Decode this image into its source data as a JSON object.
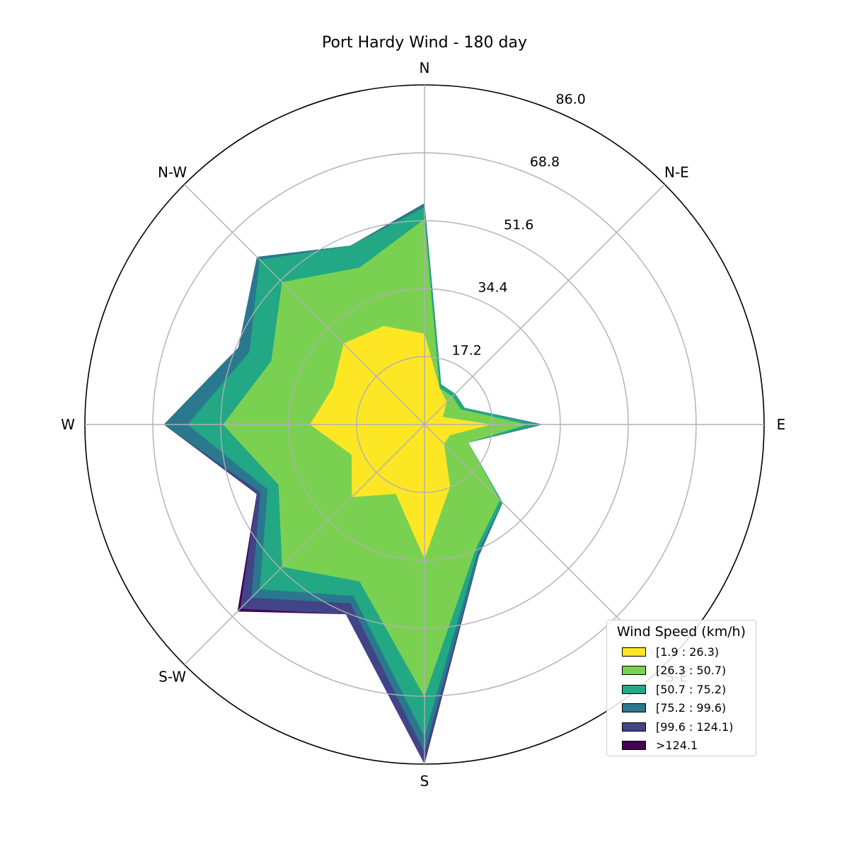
{
  "chart_data": {
    "type": "radar-stacked",
    "title": "Port Hardy Wind - 180 day",
    "directions": [
      "N",
      "N-E",
      "E",
      "S-E",
      "S",
      "S-W",
      "W",
      "N-W"
    ],
    "ring_labels": [
      "17.2",
      "34.4",
      "51.6",
      "68.8",
      "86.0"
    ],
    "ylim": [
      0,
      86.0
    ],
    "legend_title": "Wind Speed (km/h)",
    "legend_position": "lower-right",
    "angles_deg": [
      0,
      22.5,
      45,
      67.5,
      90,
      112.5,
      135,
      157.5,
      180,
      202.5,
      225,
      247.5,
      270,
      292.5,
      315,
      337.5
    ],
    "series": [
      {
        "name": "[1.9 : 26.3)",
        "color": "#fde725",
        "values": [
          23,
          10,
          8,
          5,
          17,
          7,
          7,
          17,
          34,
          19,
          26,
          20,
          29,
          25,
          29,
          27
        ]
      },
      {
        "name": "[26.3 : 50.7)",
        "color": "#7ad151",
        "values": [
          52,
          10,
          10,
          10,
          26,
          12,
          27,
          34,
          69,
          43,
          51,
          40,
          51,
          42,
          51,
          43
        ]
      },
      {
        "name": "[50.7 : 75.2)",
        "color": "#22a884",
        "values": [
          55,
          11,
          11,
          11,
          29,
          12,
          28,
          35,
          79,
          47,
          59,
          43,
          60,
          48,
          59,
          49
        ]
      },
      {
        "name": "[75.2 : 99.6)",
        "color": "#2a788e",
        "values": [
          56,
          11,
          11,
          11,
          30,
          12,
          28,
          36,
          83,
          49,
          62,
          45,
          66,
          51,
          60,
          49
        ]
      },
      {
        "name": "[99.6 : 124.1)",
        "color": "#414487",
        "values": [
          56,
          11,
          11,
          11,
          30,
          12,
          28,
          36,
          86,
          52,
          66,
          46,
          66,
          51,
          60,
          49
        ]
      },
      {
        "name": ">124.1",
        "color": "#440154",
        "values": [
          56,
          11,
          11,
          11,
          30,
          12,
          28,
          36,
          86,
          52,
          67,
          46,
          66,
          51,
          60,
          49
        ]
      }
    ]
  }
}
